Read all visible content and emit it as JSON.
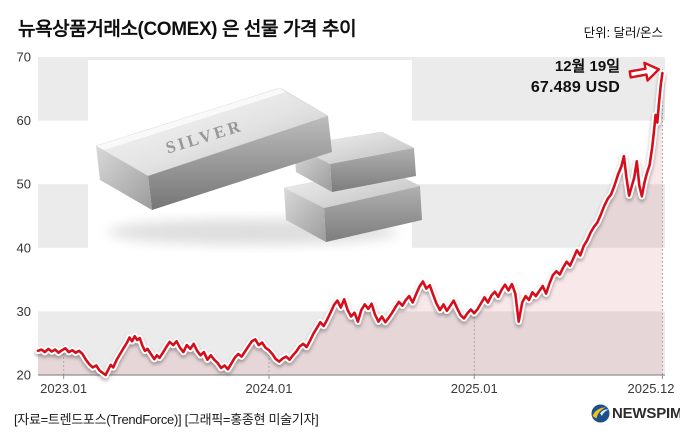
{
  "header": {
    "title": "뉴욕상품거래소(COMEX) 은 선물 가격 추이",
    "unit_label": "단위: 달러/온스"
  },
  "annotation": {
    "date": "12월 19일",
    "value": "67.489 USD"
  },
  "photo": {
    "engraving": "SILVER"
  },
  "footer": {
    "credit": "[자료=트렌드포스(TrendForce)] [그래픽=홍종현 미술기자]",
    "brand": "NEWSPIM"
  },
  "chart_data": {
    "type": "line",
    "title": "뉴욕상품거래소(COMEX) 은 선물 가격 추이",
    "unit": "달러/온스",
    "ylim": [
      20,
      70
    ],
    "y_ticks": [
      20,
      30,
      40,
      50,
      60,
      70
    ],
    "x_ticks": [
      {
        "label": "2023.01",
        "t": 0
      },
      {
        "label": "2024.01",
        "t": 12
      },
      {
        "label": "2025.01",
        "t": 24
      },
      {
        "label": "2025.12",
        "t": 35
      }
    ],
    "t_domain": [
      -1.5,
      35.15
    ],
    "stripe_color": "#ebebeb",
    "fill_color": "rgba(187,32,51,0.10)",
    "axis_color": "#8f8f8f",
    "grid_color": "#9a9a9a",
    "legend": "none",
    "grid": "horizontal-stripes",
    "last_point": {
      "date": "12월 19일",
      "value": 67.489,
      "unit": "USD"
    },
    "series": [
      {
        "name": "COMEX 은 선물 가격 (달러/온스)",
        "color": "#d7101c",
        "points": [
          [
            -1.5,
            23.8
          ],
          [
            -1.3,
            24.0
          ],
          [
            -1.1,
            23.6
          ],
          [
            -0.9,
            24.1
          ],
          [
            -0.7,
            23.7
          ],
          [
            -0.5,
            24.0
          ],
          [
            -0.3,
            23.5
          ],
          [
            -0.1,
            23.9
          ],
          [
            0.1,
            24.2
          ],
          [
            0.3,
            23.6
          ],
          [
            0.5,
            23.9
          ],
          [
            0.7,
            23.5
          ],
          [
            0.9,
            23.8
          ],
          [
            1.1,
            23.3
          ],
          [
            1.3,
            22.4
          ],
          [
            1.5,
            21.7
          ],
          [
            1.7,
            21.2
          ],
          [
            1.9,
            21.5
          ],
          [
            2.1,
            20.7
          ],
          [
            2.3,
            20.3
          ],
          [
            2.45,
            20.0
          ],
          [
            2.6,
            20.8
          ],
          [
            2.75,
            21.6
          ],
          [
            2.9,
            21.2
          ],
          [
            3.1,
            22.4
          ],
          [
            3.3,
            23.3
          ],
          [
            3.5,
            24.2
          ],
          [
            3.7,
            25.1
          ],
          [
            3.85,
            25.9
          ],
          [
            4.0,
            25.3
          ],
          [
            4.15,
            26.1
          ],
          [
            4.3,
            25.5
          ],
          [
            4.45,
            25.8
          ],
          [
            4.6,
            24.6
          ],
          [
            4.75,
            23.8
          ],
          [
            4.9,
            24.1
          ],
          [
            5.1,
            23.3
          ],
          [
            5.3,
            22.5
          ],
          [
            5.45,
            23.1
          ],
          [
            5.6,
            22.7
          ],
          [
            5.8,
            23.5
          ],
          [
            6.0,
            24.4
          ],
          [
            6.2,
            25.2
          ],
          [
            6.4,
            24.7
          ],
          [
            6.6,
            25.3
          ],
          [
            6.8,
            24.3
          ],
          [
            7.0,
            23.6
          ],
          [
            7.2,
            24.7
          ],
          [
            7.4,
            24.1
          ],
          [
            7.6,
            24.9
          ],
          [
            7.8,
            23.8
          ],
          [
            8.0,
            23.1
          ],
          [
            8.2,
            23.6
          ],
          [
            8.4,
            22.4
          ],
          [
            8.6,
            23.1
          ],
          [
            8.8,
            22.4
          ],
          [
            9.0,
            21.9
          ],
          [
            9.2,
            21.1
          ],
          [
            9.4,
            21.5
          ],
          [
            9.6,
            20.9
          ],
          [
            9.8,
            21.8
          ],
          [
            10.0,
            22.7
          ],
          [
            10.2,
            23.3
          ],
          [
            10.4,
            22.9
          ],
          [
            10.6,
            23.7
          ],
          [
            10.8,
            24.5
          ],
          [
            11.0,
            25.3
          ],
          [
            11.2,
            25.6
          ],
          [
            11.4,
            24.7
          ],
          [
            11.6,
            25.1
          ],
          [
            11.8,
            24.3
          ],
          [
            12.0,
            23.9
          ],
          [
            12.2,
            23.3
          ],
          [
            12.4,
            22.5
          ],
          [
            12.6,
            22.1
          ],
          [
            12.8,
            22.6
          ],
          [
            13.0,
            22.9
          ],
          [
            13.2,
            22.4
          ],
          [
            13.4,
            23.1
          ],
          [
            13.6,
            23.7
          ],
          [
            13.8,
            24.5
          ],
          [
            14.0,
            24.9
          ],
          [
            14.2,
            24.4
          ],
          [
            14.4,
            25.4
          ],
          [
            14.6,
            26.5
          ],
          [
            14.8,
            27.4
          ],
          [
            15.0,
            28.3
          ],
          [
            15.2,
            27.7
          ],
          [
            15.4,
            28.7
          ],
          [
            15.6,
            29.8
          ],
          [
            15.8,
            31.0
          ],
          [
            16.0,
            31.7
          ],
          [
            16.2,
            30.6
          ],
          [
            16.4,
            31.9
          ],
          [
            16.6,
            30.2
          ],
          [
            16.8,
            29.2
          ],
          [
            17.0,
            29.8
          ],
          [
            17.2,
            28.4
          ],
          [
            17.4,
            30.2
          ],
          [
            17.6,
            31.1
          ],
          [
            17.8,
            30.4
          ],
          [
            18.0,
            31.2
          ],
          [
            18.2,
            29.5
          ],
          [
            18.4,
            28.4
          ],
          [
            18.6,
            29.2
          ],
          [
            18.8,
            28.3
          ],
          [
            19.0,
            29.0
          ],
          [
            19.2,
            29.8
          ],
          [
            19.4,
            30.7
          ],
          [
            19.6,
            31.5
          ],
          [
            19.8,
            30.9
          ],
          [
            20.0,
            31.8
          ],
          [
            20.2,
            32.4
          ],
          [
            20.4,
            31.4
          ],
          [
            20.6,
            32.7
          ],
          [
            20.8,
            33.9
          ],
          [
            21.0,
            34.7
          ],
          [
            21.2,
            33.6
          ],
          [
            21.4,
            34.1
          ],
          [
            21.6,
            32.6
          ],
          [
            21.8,
            31.2
          ],
          [
            22.0,
            30.2
          ],
          [
            22.2,
            31.1
          ],
          [
            22.4,
            30.1
          ],
          [
            22.6,
            30.9
          ],
          [
            22.8,
            31.7
          ],
          [
            23.0,
            30.5
          ],
          [
            23.2,
            29.4
          ],
          [
            23.4,
            28.9
          ],
          [
            23.6,
            29.7
          ],
          [
            23.8,
            30.3
          ],
          [
            24.0,
            29.7
          ],
          [
            24.2,
            30.4
          ],
          [
            24.4,
            31.3
          ],
          [
            24.6,
            32.2
          ],
          [
            24.8,
            31.4
          ],
          [
            25.0,
            32.5
          ],
          [
            25.2,
            33.1
          ],
          [
            25.4,
            32.3
          ],
          [
            25.6,
            33.4
          ],
          [
            25.8,
            34.2
          ],
          [
            26.0,
            33.3
          ],
          [
            26.2,
            34.3
          ],
          [
            26.4,
            32.8
          ],
          [
            26.6,
            28.4
          ],
          [
            26.8,
            31.4
          ],
          [
            27.0,
            32.4
          ],
          [
            27.2,
            31.8
          ],
          [
            27.4,
            33.0
          ],
          [
            27.6,
            32.4
          ],
          [
            27.8,
            33.2
          ],
          [
            28.0,
            34.0
          ],
          [
            28.2,
            32.8
          ],
          [
            28.4,
            34.4
          ],
          [
            28.6,
            35.7
          ],
          [
            28.8,
            36.3
          ],
          [
            29.0,
            35.8
          ],
          [
            29.2,
            36.9
          ],
          [
            29.4,
            37.8
          ],
          [
            29.6,
            37.2
          ],
          [
            29.8,
            38.4
          ],
          [
            30.0,
            39.6
          ],
          [
            30.2,
            38.8
          ],
          [
            30.4,
            40.3
          ],
          [
            30.6,
            41.2
          ],
          [
            30.8,
            42.4
          ],
          [
            31.0,
            43.3
          ],
          [
            31.2,
            44.0
          ],
          [
            31.4,
            45.2
          ],
          [
            31.6,
            46.6
          ],
          [
            31.8,
            47.7
          ],
          [
            32.0,
            48.4
          ],
          [
            32.2,
            49.8
          ],
          [
            32.4,
            51.5
          ],
          [
            32.6,
            52.8
          ],
          [
            32.75,
            54.4
          ],
          [
            32.9,
            51.0
          ],
          [
            33.05,
            48.2
          ],
          [
            33.2,
            49.6
          ],
          [
            33.35,
            51.0
          ],
          [
            33.5,
            53.6
          ],
          [
            33.65,
            49.8
          ],
          [
            33.8,
            48.1
          ],
          [
            33.95,
            50.3
          ],
          [
            34.1,
            51.8
          ],
          [
            34.25,
            53.0
          ],
          [
            34.4,
            55.8
          ],
          [
            34.5,
            58.2
          ],
          [
            34.6,
            60.9
          ],
          [
            34.7,
            59.7
          ],
          [
            34.8,
            62.8
          ],
          [
            34.9,
            65.5
          ],
          [
            35.0,
            67.489
          ]
        ]
      }
    ]
  }
}
